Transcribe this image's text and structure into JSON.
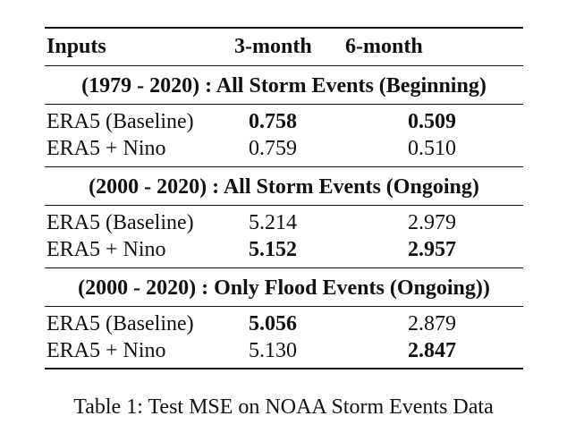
{
  "table": {
    "headers": {
      "inputs": "Inputs",
      "three_month": "3-month",
      "six_month": "6-month"
    },
    "groups": [
      {
        "title": "(1979 - 2020) : All Storm Events (Beginning)",
        "rows": [
          {
            "input": "ERA5 (Baseline)",
            "three_month": "0.758",
            "six_month": "0.509",
            "three_month_bold": true,
            "six_month_bold": true
          },
          {
            "input": "ERA5 + Nino",
            "three_month": "0.759",
            "six_month": "0.510",
            "three_month_bold": false,
            "six_month_bold": false
          }
        ]
      },
      {
        "title": "(2000 - 2020) : All Storm Events (Ongoing)",
        "rows": [
          {
            "input": "ERA5 (Baseline)",
            "three_month": "5.214",
            "six_month": "2.979",
            "three_month_bold": false,
            "six_month_bold": false
          },
          {
            "input": "ERA5 + Nino",
            "three_month": "5.152",
            "six_month": "2.957",
            "three_month_bold": true,
            "six_month_bold": true
          }
        ]
      },
      {
        "title": "(2000 - 2020) : Only Flood Events (Ongoing))",
        "rows": [
          {
            "input": "ERA5 (Baseline)",
            "three_month": "5.056",
            "six_month": "2.879",
            "three_month_bold": true,
            "six_month_bold": false
          },
          {
            "input": "ERA5 + Nino",
            "three_month": "5.130",
            "six_month": "2.847",
            "three_month_bold": false,
            "six_month_bold": true
          }
        ]
      }
    ],
    "caption": "Table 1: Test MSE on NOAA Storm Events Data"
  }
}
